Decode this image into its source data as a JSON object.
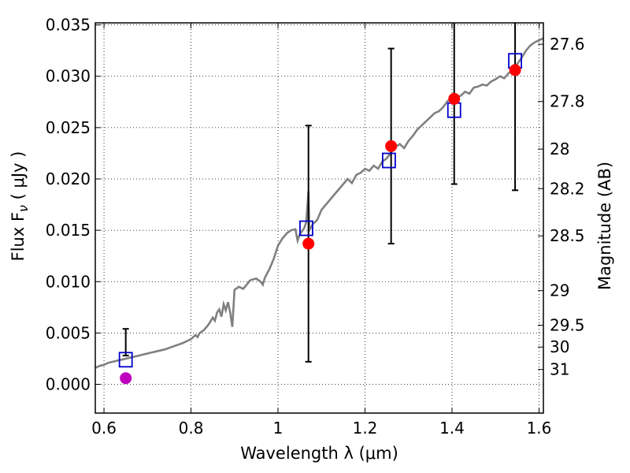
{
  "chart_data": {
    "type": "scatter",
    "xlabel": "Wavelength  λ (μm)",
    "ylabel": "Flux  F",
    "ylabel_sub": "ν",
    "ylabel_unit": " ( μJy )",
    "y2label": "Magnitude (AB)",
    "xlim": [
      0.58,
      1.61
    ],
    "ylim": [
      -0.0028,
      0.0352
    ],
    "grid": true,
    "x_ticks": [
      {
        "value": 0.6,
        "label": "0.6"
      },
      {
        "value": 0.8,
        "label": "0.8"
      },
      {
        "value": 1.0,
        "label": "1"
      },
      {
        "value": 1.2,
        "label": "1.2"
      },
      {
        "value": 1.4,
        "label": "1.4"
      },
      {
        "value": 1.6,
        "label": "1.6"
      }
    ],
    "y_ticks": [
      {
        "value": 0.0,
        "label": "0.000"
      },
      {
        "value": 0.005,
        "label": "0.005"
      },
      {
        "value": 0.01,
        "label": "0.010"
      },
      {
        "value": 0.015,
        "label": "0.015"
      },
      {
        "value": 0.02,
        "label": "0.020"
      },
      {
        "value": 0.025,
        "label": "0.025"
      },
      {
        "value": 0.03,
        "label": "0.030"
      },
      {
        "value": 0.035,
        "label": "0.035"
      }
    ],
    "mag_ticks": [
      {
        "mag": 27.6,
        "label": "27.6"
      },
      {
        "mag": 27.8,
        "label": "27.8"
      },
      {
        "mag": 28.0,
        "label": "28"
      },
      {
        "mag": 28.2,
        "label": "28.2"
      },
      {
        "mag": 28.5,
        "label": "28.5"
      },
      {
        "mag": 29.0,
        "label": "29"
      },
      {
        "mag": 29.5,
        "label": "29.5"
      },
      {
        "mag": 30.0,
        "label": "30"
      },
      {
        "mag": 31.0,
        "label": "31"
      }
    ],
    "observed": [
      {
        "x": 0.65,
        "y": 0.0006,
        "yerr_low": 0.0028,
        "yerr_high": 0.0054,
        "color": "#bf00bf"
      },
      {
        "x": 1.07,
        "y": 0.0137,
        "yerr_low": 0.0022,
        "yerr_high": 0.0252,
        "color": "#ff0000"
      },
      {
        "x": 1.26,
        "y": 0.0232,
        "yerr_low": 0.0137,
        "yerr_high": 0.0327,
        "color": "#ff0000"
      },
      {
        "x": 1.405,
        "y": 0.0278,
        "yerr_low": 0.0195,
        "yerr_high": 0.0352,
        "color": "#ff0000"
      },
      {
        "x": 1.545,
        "y": 0.0306,
        "yerr_low": 0.0189,
        "yerr_high": 0.0352,
        "color": "#ff0000"
      }
    ],
    "model_photometry": [
      {
        "x": 0.65,
        "y": 0.0024
      },
      {
        "x": 1.065,
        "y": 0.0152
      },
      {
        "x": 1.255,
        "y": 0.0218
      },
      {
        "x": 1.405,
        "y": 0.0267
      },
      {
        "x": 1.545,
        "y": 0.0315
      }
    ],
    "spectrum": [
      [
        0.58,
        0.0016
      ],
      [
        0.59,
        0.0018
      ],
      [
        0.6,
        0.0019
      ],
      [
        0.61,
        0.0021
      ],
      [
        0.62,
        0.0022
      ],
      [
        0.64,
        0.0024
      ],
      [
        0.66,
        0.0026
      ],
      [
        0.68,
        0.0028
      ],
      [
        0.7,
        0.003
      ],
      [
        0.72,
        0.0032
      ],
      [
        0.74,
        0.0034
      ],
      [
        0.76,
        0.0037
      ],
      [
        0.78,
        0.004
      ],
      [
        0.79,
        0.0042
      ],
      [
        0.8,
        0.0044
      ],
      [
        0.81,
        0.0048
      ],
      [
        0.815,
        0.0046
      ],
      [
        0.82,
        0.005
      ],
      [
        0.83,
        0.0053
      ],
      [
        0.84,
        0.0058
      ],
      [
        0.85,
        0.0065
      ],
      [
        0.855,
        0.0062
      ],
      [
        0.86,
        0.007
      ],
      [
        0.865,
        0.0073
      ],
      [
        0.87,
        0.0066
      ],
      [
        0.875,
        0.0078
      ],
      [
        0.88,
        0.0072
      ],
      [
        0.885,
        0.008
      ],
      [
        0.89,
        0.007
      ],
      [
        0.895,
        0.0056
      ],
      [
        0.9,
        0.0092
      ],
      [
        0.91,
        0.0095
      ],
      [
        0.92,
        0.0093
      ],
      [
        0.93,
        0.0098
      ],
      [
        0.935,
        0.0101
      ],
      [
        0.94,
        0.0102
      ],
      [
        0.95,
        0.0103
      ],
      [
        0.96,
        0.01
      ],
      [
        0.965,
        0.0097
      ],
      [
        0.97,
        0.0104
      ],
      [
        0.98,
        0.0112
      ],
      [
        0.99,
        0.0122
      ],
      [
        1.0,
        0.0135
      ],
      [
        1.01,
        0.0142
      ],
      [
        1.02,
        0.0147
      ],
      [
        1.03,
        0.015
      ],
      [
        1.04,
        0.0151
      ],
      [
        1.045,
        0.014
      ],
      [
        1.05,
        0.0146
      ],
      [
        1.06,
        0.0152
      ],
      [
        1.065,
        0.0158
      ],
      [
        1.07,
        0.0188
      ],
      [
        1.072,
        0.015
      ],
      [
        1.08,
        0.0156
      ],
      [
        1.09,
        0.016
      ],
      [
        1.1,
        0.017
      ],
      [
        1.11,
        0.0175
      ],
      [
        1.12,
        0.018
      ],
      [
        1.13,
        0.0185
      ],
      [
        1.14,
        0.019
      ],
      [
        1.15,
        0.0195
      ],
      [
        1.16,
        0.02
      ],
      [
        1.17,
        0.0196
      ],
      [
        1.18,
        0.0204
      ],
      [
        1.19,
        0.0206
      ],
      [
        1.2,
        0.021
      ],
      [
        1.21,
        0.0208
      ],
      [
        1.22,
        0.0213
      ],
      [
        1.23,
        0.021
      ],
      [
        1.24,
        0.0217
      ],
      [
        1.25,
        0.022
      ],
      [
        1.26,
        0.0226
      ],
      [
        1.27,
        0.0231
      ],
      [
        1.28,
        0.0234
      ],
      [
        1.29,
        0.023
      ],
      [
        1.3,
        0.0237
      ],
      [
        1.31,
        0.0242
      ],
      [
        1.32,
        0.0248
      ],
      [
        1.33,
        0.0252
      ],
      [
        1.34,
        0.0256
      ],
      [
        1.35,
        0.026
      ],
      [
        1.36,
        0.0264
      ],
      [
        1.37,
        0.0266
      ],
      [
        1.38,
        0.027
      ],
      [
        1.39,
        0.0276
      ],
      [
        1.4,
        0.0278
      ],
      [
        1.41,
        0.028
      ],
      [
        1.42,
        0.0281
      ],
      [
        1.43,
        0.0285
      ],
      [
        1.44,
        0.0283
      ],
      [
        1.45,
        0.0289
      ],
      [
        1.46,
        0.029
      ],
      [
        1.47,
        0.0292
      ],
      [
        1.48,
        0.0291
      ],
      [
        1.49,
        0.0295
      ],
      [
        1.5,
        0.0297
      ],
      [
        1.51,
        0.03
      ],
      [
        1.52,
        0.0298
      ],
      [
        1.53,
        0.0303
      ],
      [
        1.54,
        0.0306
      ],
      [
        1.55,
        0.0312
      ],
      [
        1.56,
        0.0318
      ],
      [
        1.57,
        0.0325
      ],
      [
        1.58,
        0.033
      ],
      [
        1.59,
        0.0333
      ],
      [
        1.6,
        0.0335
      ],
      [
        1.61,
        0.0337
      ]
    ],
    "colors": {
      "spectrum": "#808080",
      "model_box": "#0000cc",
      "errorbar": "#000000",
      "grid": "#000000"
    }
  }
}
